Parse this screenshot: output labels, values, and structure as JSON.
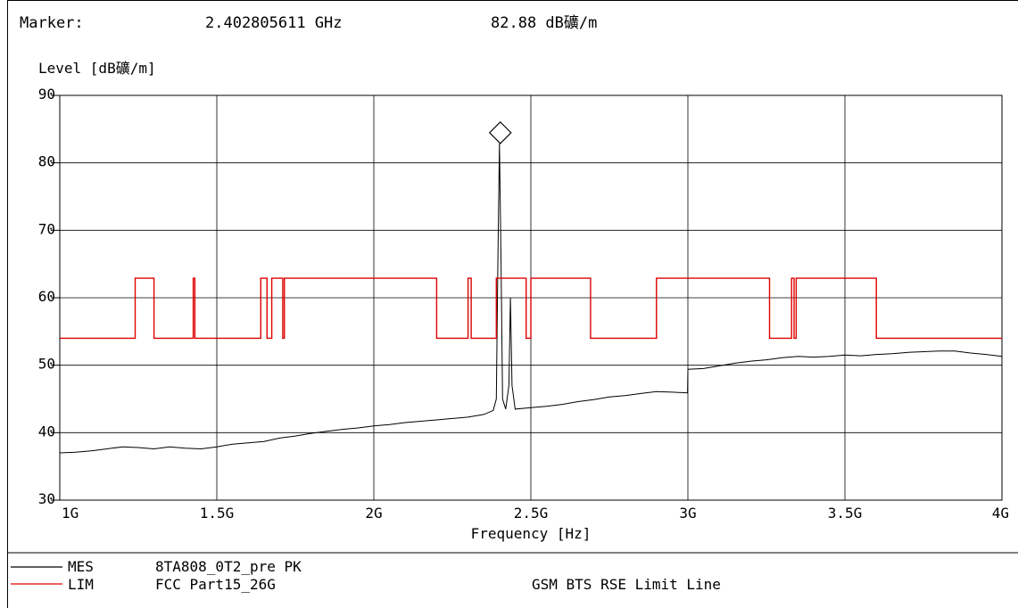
{
  "header": {
    "marker_label": "Marker:",
    "marker_freq": "2.402805611 GHz",
    "marker_level": "82.88 dB礦/m"
  },
  "chart_data": {
    "type": "line",
    "ylabel": "Level [dB礦/m]",
    "xlabel": "Frequency [Hz]",
    "xlim": [
      1,
      4
    ],
    "ylim": [
      30,
      90
    ],
    "x_unit": "GHz",
    "grid": true,
    "yticks": [
      30,
      40,
      50,
      60,
      70,
      80,
      90
    ],
    "ytick_labels": [
      "30",
      "40",
      "50",
      "60",
      "70",
      "80",
      "90"
    ],
    "xticks": [
      1,
      1.5,
      2,
      2.5,
      3,
      3.5,
      4
    ],
    "xtick_labels": [
      "1G",
      "1.5G",
      "2G",
      "2.5G",
      "3G",
      "3.5G",
      "4G"
    ],
    "marker": {
      "x": 2.402805611,
      "y": 82.88,
      "shape": "diamond"
    },
    "series": [
      {
        "name": "MES",
        "color": "#000000",
        "x": [
          1.0,
          1.05,
          1.1,
          1.15,
          1.2,
          1.25,
          1.3,
          1.35,
          1.4,
          1.45,
          1.5,
          1.55,
          1.6,
          1.65,
          1.7,
          1.75,
          1.8,
          1.85,
          1.9,
          1.95,
          2.0,
          2.05,
          2.1,
          2.15,
          2.2,
          2.25,
          2.3,
          2.35,
          2.38,
          2.39,
          2.395,
          2.4,
          2.405,
          2.41,
          2.42,
          2.43,
          2.435,
          2.44,
          2.45,
          2.5,
          2.55,
          2.6,
          2.65,
          2.7,
          2.75,
          2.8,
          2.85,
          2.9,
          2.95,
          2.999,
          3.0,
          3.05,
          3.1,
          3.15,
          3.2,
          3.25,
          3.3,
          3.35,
          3.4,
          3.45,
          3.5,
          3.55,
          3.6,
          3.65,
          3.7,
          3.75,
          3.8,
          3.85,
          3.9,
          3.95,
          4.0
        ],
        "y": [
          37.0,
          37.1,
          37.3,
          37.6,
          37.9,
          37.8,
          37.6,
          37.9,
          37.7,
          37.6,
          37.9,
          38.3,
          38.5,
          38.7,
          39.2,
          39.5,
          39.9,
          40.2,
          40.5,
          40.7,
          41.0,
          41.2,
          41.5,
          41.7,
          41.9,
          42.1,
          42.3,
          42.7,
          43.3,
          45.0,
          65.0,
          82.9,
          65.0,
          45.0,
          43.5,
          47.0,
          60.0,
          47.0,
          43.5,
          43.7,
          43.9,
          44.2,
          44.6,
          44.9,
          45.3,
          45.5,
          45.8,
          46.1,
          46.0,
          45.9,
          49.4,
          49.5,
          49.9,
          50.3,
          50.6,
          50.8,
          51.1,
          51.3,
          51.2,
          51.3,
          51.5,
          51.4,
          51.6,
          51.7,
          51.9,
          52.0,
          52.1,
          52.1,
          51.8,
          51.6,
          51.3
        ]
      },
      {
        "name": "LIM",
        "color": "#e00000",
        "x": [
          1.0,
          1.24,
          1.24,
          1.3,
          1.3,
          1.425,
          1.425,
          1.43,
          1.43,
          1.64,
          1.64,
          1.66,
          1.66,
          1.675,
          1.675,
          1.71,
          1.71,
          1.715,
          1.715,
          2.2,
          2.2,
          2.3,
          2.3,
          2.31,
          2.31,
          2.39,
          2.39,
          2.485,
          2.485,
          2.5,
          2.5,
          2.69,
          2.69,
          2.9,
          2.9,
          3.26,
          3.26,
          3.33,
          3.33,
          3.338,
          3.338,
          3.345,
          3.345,
          3.6,
          3.6,
          4.0
        ],
        "y": [
          54.0,
          54.0,
          62.9,
          62.9,
          54.0,
          54.0,
          62.9,
          62.9,
          54.0,
          54.0,
          62.9,
          62.9,
          54.0,
          54.0,
          62.9,
          62.9,
          54.0,
          54.0,
          62.9,
          62.9,
          54.0,
          54.0,
          62.9,
          62.9,
          54.0,
          54.0,
          62.9,
          62.9,
          54.0,
          54.0,
          62.9,
          62.9,
          54.0,
          54.0,
          62.9,
          62.9,
          54.0,
          54.0,
          62.9,
          62.9,
          54.0,
          54.0,
          62.9,
          62.9,
          54.0,
          54.0
        ]
      }
    ],
    "legend": [
      {
        "tag": "MES",
        "desc": "8TA808_0T2_pre PK",
        "extra": "",
        "color": "#000000"
      },
      {
        "tag": "LIM",
        "desc": "FCC Part15_26G",
        "extra": "GSM BTS RSE Limit Line",
        "color": "#e00000"
      }
    ]
  }
}
